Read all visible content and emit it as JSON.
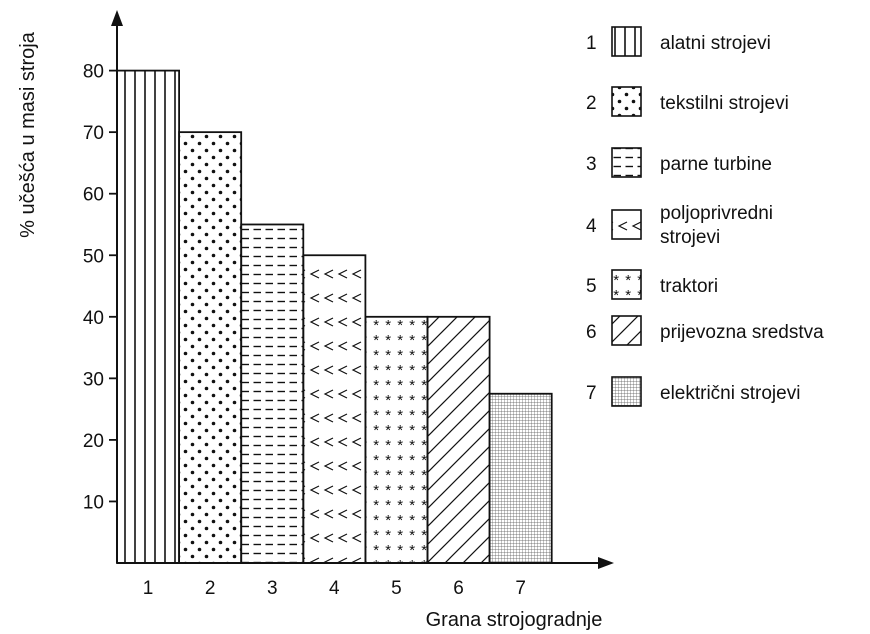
{
  "chart_data": {
    "type": "bar",
    "title": "",
    "xlabel": "Grana strojogradnje",
    "ylabel": "% učešća u masi stroja",
    "categories": [
      "1",
      "2",
      "3",
      "4",
      "5",
      "6",
      "7"
    ],
    "values": [
      80,
      70,
      55,
      50,
      40,
      40,
      27.5
    ],
    "ylim": [
      0,
      90
    ],
    "yticks": [
      "10",
      "20",
      "30",
      "40",
      "50",
      "60",
      "70",
      "80"
    ],
    "grid": false,
    "legend_position": "right",
    "legend": [
      {
        "number": "1",
        "lines": [
          "alatni strojevi"
        ],
        "pattern": "vertical-lines"
      },
      {
        "number": "2",
        "lines": [
          "tekstilni strojevi"
        ],
        "pattern": "dots"
      },
      {
        "number": "3",
        "lines": [
          "parne turbine"
        ],
        "pattern": "dashes"
      },
      {
        "number": "4",
        "lines": [
          "poljoprivredni",
          "strojevi"
        ],
        "pattern": "chevrons"
      },
      {
        "number": "5",
        "lines": [
          "traktori"
        ],
        "pattern": "asterisks"
      },
      {
        "number": "6",
        "lines": [
          "prijevozna sredstva"
        ],
        "pattern": "diagonal-lines"
      },
      {
        "number": "7",
        "lines": [
          "električni strojevi"
        ],
        "pattern": "fine-grid"
      }
    ],
    "colors": {
      "ink": "#111111",
      "background": "#ffffff"
    }
  }
}
